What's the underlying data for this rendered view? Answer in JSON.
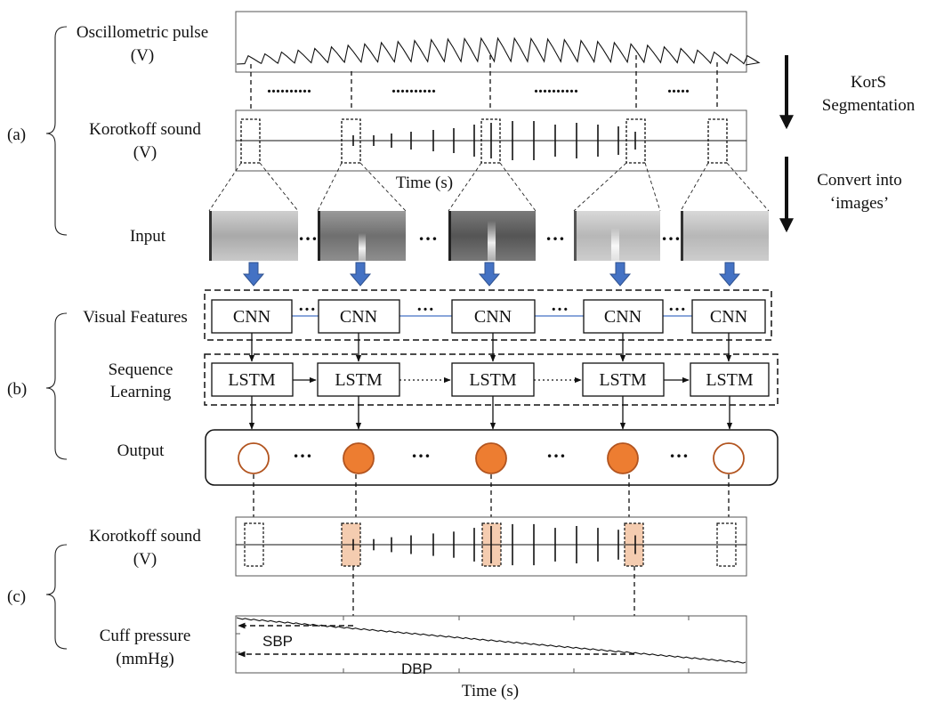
{
  "panel_labels": {
    "a": "(a)",
    "b": "(b)",
    "c": "(c)"
  },
  "row_labels": {
    "osc_line1": "Oscillometric pulse",
    "osc_line2": "(V)",
    "kor_line1": "Korotkoff sound",
    "kor_line2": "(V)",
    "input": "Input",
    "visual": "Visual Features",
    "seq_line1": "Sequence",
    "seq_line2": "Learning",
    "output": "Output",
    "kor2_line1": "Korotkoff sound",
    "kor2_line2": "(V)",
    "cuff_line1": "Cuff pressure",
    "cuff_line2": "(mmHg)"
  },
  "side_labels": {
    "seg_line1": "KorS",
    "seg_line2": "Segmentation",
    "conv_line1": "Convert into",
    "conv_line2": "‘images’"
  },
  "axis": {
    "time_mid": "Time (s)",
    "time_bottom": "Time (s)"
  },
  "nodes": {
    "cnn": "CNN",
    "lstm": "LSTM"
  },
  "ellipsis": "…",
  "dots_long": "..........",
  "dots_short": ".....",
  "annotations": {
    "sbp": "SBP",
    "dbp": "DBP"
  },
  "output_states": [
    false,
    true,
    true,
    true,
    false
  ],
  "colors": {
    "orange": "#ED7D31",
    "orange_edge": "#B2541F",
    "blue": "#4472C4",
    "highlight": "#F4CCB0"
  }
}
